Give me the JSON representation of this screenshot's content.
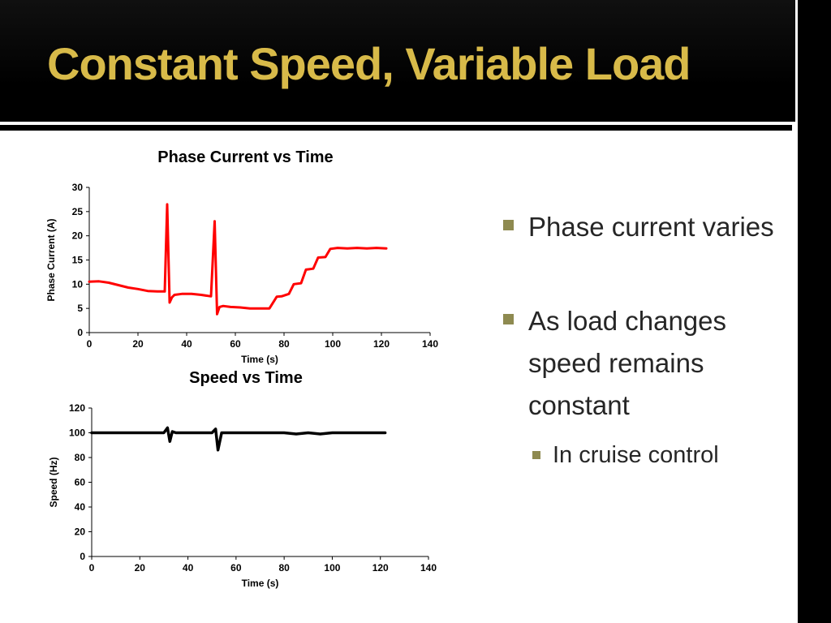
{
  "slide": {
    "title": "Constant Speed, Variable Load",
    "bullets": [
      {
        "text": "Phase current varies"
      },
      {
        "text": "As load changes speed remains constant"
      }
    ],
    "sub_bullet": {
      "text": "In cruise control"
    }
  },
  "colors": {
    "title": "#D8BA49",
    "bullet_marker": "#8E8A50",
    "header_bg": "#000000",
    "phase_line": "#FF0000",
    "speed_line": "#000000"
  },
  "chart_data": [
    {
      "type": "line",
      "title": "Phase Current vs Time",
      "xlabel": "Time (s)",
      "ylabel": "Phase Current (A)",
      "xlim": [
        0,
        140
      ],
      "ylim": [
        0,
        30
      ],
      "xticks": [
        0,
        20,
        40,
        60,
        80,
        100,
        120,
        140
      ],
      "yticks": [
        0,
        5,
        10,
        15,
        20,
        25,
        30
      ],
      "grid": false,
      "legend": false,
      "color": "#FF0000",
      "line_width": 3,
      "series": [
        {
          "name": "Phase Current",
          "x": [
            0,
            4,
            8,
            12,
            16,
            20,
            24,
            28,
            31,
            32,
            33,
            34,
            35,
            38,
            42,
            46,
            50,
            51.5,
            52.5,
            53.5,
            55,
            58,
            62,
            66,
            70,
            74,
            77,
            79,
            82,
            84,
            87,
            89,
            92,
            94,
            97,
            99,
            102,
            106,
            110,
            114,
            118,
            122
          ],
          "y": [
            10.5,
            10.6,
            10.3,
            9.8,
            9.3,
            9.0,
            8.6,
            8.5,
            8.5,
            26.5,
            6.2,
            7.3,
            7.8,
            8.0,
            8.0,
            7.8,
            7.5,
            23.0,
            3.8,
            5.3,
            5.5,
            5.3,
            5.2,
            5.0,
            5.0,
            5.0,
            7.4,
            7.5,
            8.0,
            10.0,
            10.2,
            13.0,
            13.2,
            15.5,
            15.6,
            17.3,
            17.5,
            17.4,
            17.5,
            17.4,
            17.5,
            17.4
          ]
        }
      ]
    },
    {
      "type": "line",
      "title": "Speed vs Time",
      "xlabel": "Time (s)",
      "ylabel": "Speed (Hz)",
      "xlim": [
        0,
        140
      ],
      "ylim": [
        0,
        120
      ],
      "xticks": [
        0,
        20,
        40,
        60,
        80,
        100,
        120,
        140
      ],
      "yticks": [
        0,
        20,
        40,
        60,
        80,
        100,
        120
      ],
      "grid": false,
      "legend": false,
      "color": "#000000",
      "line_width": 3.5,
      "series": [
        {
          "name": "Speed",
          "x": [
            0,
            5,
            10,
            15,
            20,
            25,
            30,
            31.5,
            32.5,
            33.5,
            35,
            40,
            45,
            50,
            51.5,
            52.5,
            54,
            56,
            60,
            65,
            70,
            75,
            80,
            85,
            90,
            95,
            100,
            105,
            110,
            115,
            120,
            122
          ],
          "y": [
            100,
            100,
            100,
            100,
            100,
            100,
            100,
            104,
            93,
            101,
            100,
            100,
            100,
            100,
            103,
            86,
            100,
            100,
            100,
            100,
            100,
            100,
            100,
            99,
            100,
            99,
            100,
            100,
            100,
            100,
            100,
            100
          ]
        }
      ]
    }
  ]
}
